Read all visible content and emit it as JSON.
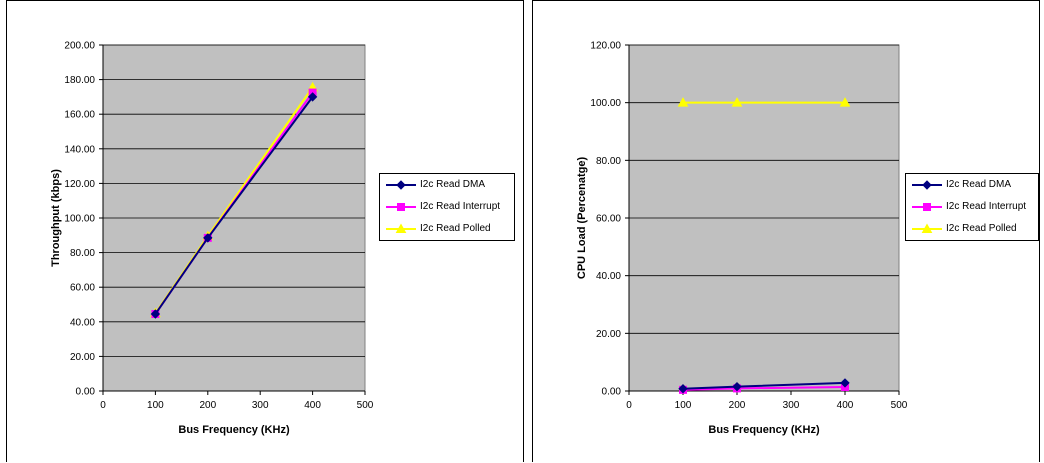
{
  "colors": {
    "plot_bg": "#c0c0c0",
    "dma": "#000080",
    "interrupt": "#ff00ff",
    "polled": "#ffff00"
  },
  "chart_data": [
    {
      "type": "line",
      "title": "",
      "xlabel": "Bus Frequency (KHz)",
      "ylabel": "Throughput (kbps)",
      "xlim": [
        0,
        500
      ],
      "ylim": [
        0,
        200
      ],
      "x_ticks": [
        "0",
        "100",
        "200",
        "300",
        "400",
        "500"
      ],
      "y_ticks": [
        "0.00",
        "20.00",
        "40.00",
        "60.00",
        "80.00",
        "100.00",
        "120.00",
        "140.00",
        "160.00",
        "180.00",
        "200.00"
      ],
      "grid": "horizontal",
      "legend": "right",
      "series": [
        {
          "name": "I2c Read DMA",
          "marker": "diamond",
          "color": "#000080",
          "x": [
            100,
            200,
            400
          ],
          "y": [
            44.5,
            88.5,
            170.0
          ]
        },
        {
          "name": "I2c Read Interrupt",
          "marker": "square",
          "color": "#ff00ff",
          "x": [
            100,
            200,
            400
          ],
          "y": [
            44.5,
            88.5,
            172.5
          ]
        },
        {
          "name": "I2c Read Polled",
          "marker": "triangle",
          "color": "#ffff00",
          "x": [
            100,
            200,
            400
          ],
          "y": [
            45.0,
            89.5,
            175.5
          ]
        }
      ]
    },
    {
      "type": "line",
      "title": "",
      "xlabel": "Bus Frequency (KHz)",
      "ylabel": "CPU Load (Percenatge)",
      "xlim": [
        0,
        500
      ],
      "ylim": [
        0,
        120
      ],
      "x_ticks": [
        "0",
        "100",
        "200",
        "300",
        "400",
        "500"
      ],
      "y_ticks": [
        "0.00",
        "20.00",
        "40.00",
        "60.00",
        "80.00",
        "100.00",
        "120.00"
      ],
      "grid": "horizontal",
      "legend": "right",
      "series": [
        {
          "name": "I2c Read DMA",
          "marker": "diamond",
          "color": "#000080",
          "x": [
            100,
            200,
            400
          ],
          "y": [
            0.8,
            1.5,
            2.8
          ]
        },
        {
          "name": "I2c Read Interrupt",
          "marker": "square",
          "color": "#ff00ff",
          "x": [
            100,
            200,
            400
          ],
          "y": [
            0.4,
            0.9,
            1.4
          ]
        },
        {
          "name": "I2c Read Polled",
          "marker": "triangle",
          "color": "#ffff00",
          "x": [
            100,
            200,
            400
          ],
          "y": [
            100,
            100,
            100
          ]
        }
      ]
    }
  ]
}
